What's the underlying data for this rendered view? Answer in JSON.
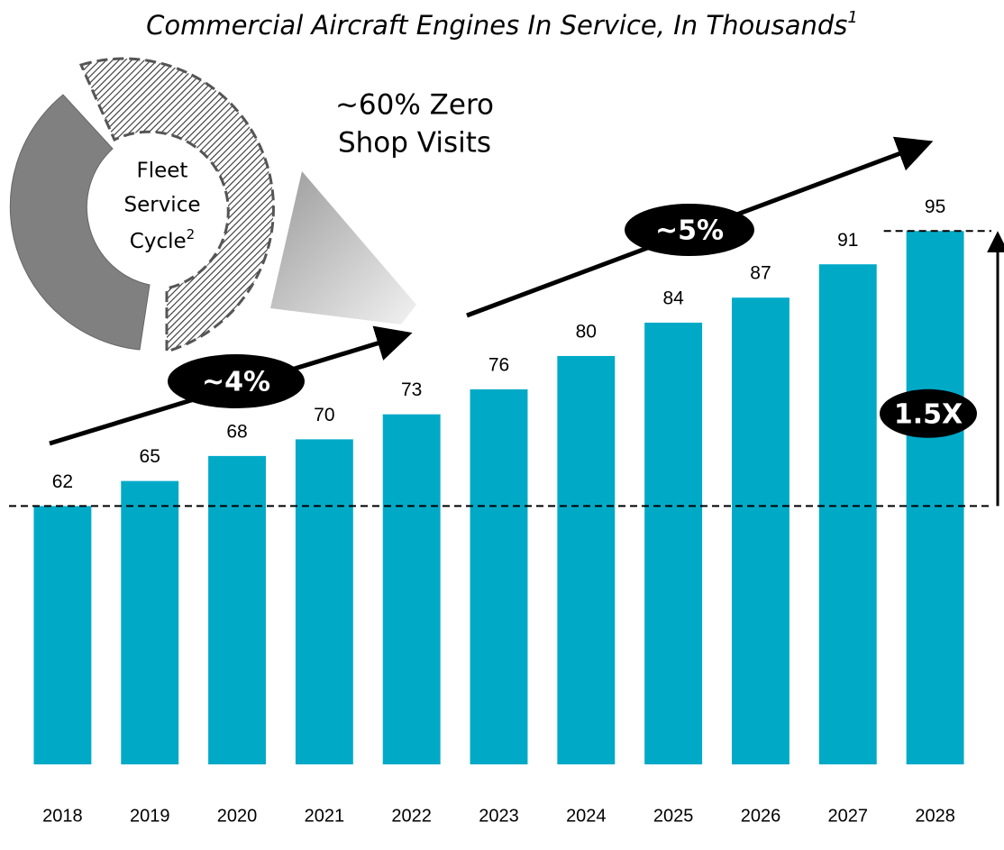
{
  "chart_data": {
    "type": "bar",
    "title": "Commercial Aircraft Engines In Service, In Thousands",
    "title_note": "1",
    "categories": [
      "2018",
      "2019",
      "2020",
      "2021",
      "2022",
      "2023",
      "2024",
      "2025",
      "2026",
      "2027",
      "2028"
    ],
    "values": [
      62,
      65,
      68,
      70,
      73,
      76,
      80,
      84,
      87,
      91,
      95
    ],
    "color": "#00aac7",
    "ylim": [
      31,
      100
    ],
    "callout": [
      "~60% Zero",
      "Shop Visits"
    ],
    "donut_label": [
      "Fleet",
      "Service",
      "Cycle"
    ],
    "donut_note": "2",
    "growth_labels": [
      "~4%",
      "~5%"
    ],
    "ratio_label": "1.5X"
  }
}
